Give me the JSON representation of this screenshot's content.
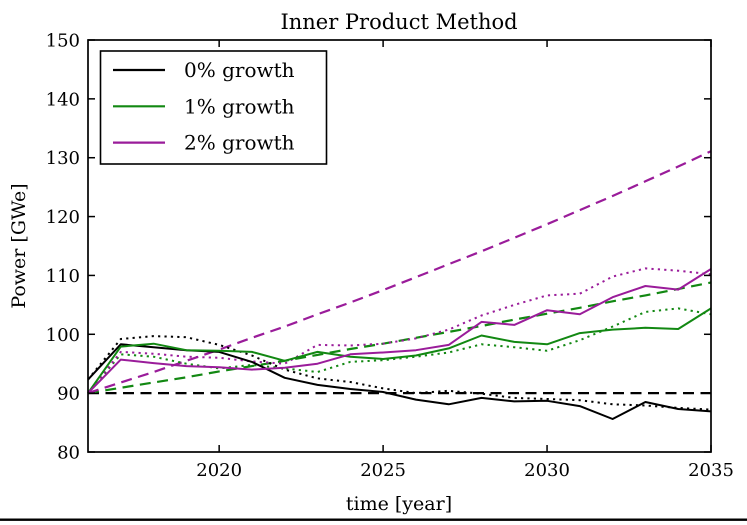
{
  "figure": {
    "title": "Inner Product Method",
    "xlabel": "time [year]",
    "ylabel": "Power [GWe]"
  },
  "chart_data": {
    "type": "line",
    "title": "Inner Product Method",
    "xlabel": "time [year]",
    "ylabel": "Power [GWe]",
    "xlim": [
      2016,
      2035
    ],
    "ylim": [
      80,
      150
    ],
    "grid": false,
    "xticks": [
      2020,
      2025,
      2030,
      2035
    ],
    "xtick_labels": [
      "2020",
      "2025",
      "2030",
      "2035"
    ],
    "yticks": [
      80,
      90,
      100,
      110,
      120,
      130,
      140,
      150
    ],
    "ytick_labels": [
      "80",
      "90",
      "100",
      "110",
      "120",
      "130",
      "140",
      "150"
    ],
    "colors": {
      "black": "#000000",
      "green": "#128812",
      "magenta": "#9a1c9a"
    },
    "legend": {
      "position": "upper-left",
      "entries": [
        {
          "label": "0% growth",
          "color": "#000000"
        },
        {
          "label": "1% growth",
          "color": "#128812"
        },
        {
          "label": "2% growth",
          "color": "#9a1c9a"
        }
      ]
    },
    "x": [
      2016,
      2017,
      2018,
      2019,
      2020,
      2021,
      2022,
      2023,
      2024,
      2025,
      2026,
      2027,
      2028,
      2029,
      2030,
      2031,
      2032,
      2033,
      2034,
      2035
    ],
    "series": [
      {
        "name": "0% growth demand (dashed)",
        "color": "#000000",
        "style": "dashed",
        "values": [
          90,
          90,
          90,
          90,
          90,
          90,
          90,
          90,
          90,
          90,
          90,
          90,
          90,
          90,
          90,
          90,
          90,
          90,
          90,
          90
        ]
      },
      {
        "name": "1% growth demand (dashed)",
        "color": "#128812",
        "style": "dashed",
        "values": [
          90.0,
          90.9,
          91.8,
          92.7,
          93.7,
          94.6,
          95.5,
          96.5,
          97.5,
          98.4,
          99.4,
          100.4,
          101.4,
          102.5,
          103.5,
          104.5,
          105.6,
          106.6,
          107.7,
          108.8
        ]
      },
      {
        "name": "2% growth demand (dashed)",
        "color": "#9a1c9a",
        "style": "dashed",
        "values": [
          90.0,
          91.8,
          93.6,
          95.5,
          97.4,
          99.4,
          101.3,
          103.4,
          105.4,
          107.5,
          109.7,
          111.9,
          114.1,
          116.4,
          118.7,
          121.1,
          123.5,
          126.0,
          128.5,
          131.1
        ]
      },
      {
        "name": "0% growth (dotted)",
        "color": "#000000",
        "style": "dotted",
        "values": [
          92.3,
          99.2,
          99.7,
          99.5,
          98.2,
          96.4,
          94.0,
          92.5,
          91.9,
          90.8,
          90.0,
          90.4,
          89.9,
          89.2,
          89.0,
          88.8,
          88.1,
          87.9,
          87.5,
          87.2
        ]
      },
      {
        "name": "1% growth (dotted)",
        "color": "#128812",
        "style": "dotted",
        "values": [
          90.0,
          96.6,
          96.2,
          95.0,
          94.2,
          94.8,
          94.2,
          93.6,
          95.3,
          95.6,
          96.2,
          96.9,
          98.3,
          97.8,
          97.2,
          99.0,
          101.3,
          103.8,
          104.4,
          103.4
        ]
      },
      {
        "name": "2% growth (dotted)",
        "color": "#9a1c9a",
        "style": "dotted",
        "values": [
          90.0,
          97.0,
          96.7,
          96.2,
          96.0,
          95.4,
          95.0,
          98.2,
          98.1,
          98.4,
          99.3,
          100.8,
          103.2,
          105.0,
          106.6,
          106.9,
          109.8,
          111.2,
          110.8,
          110.2
        ]
      },
      {
        "name": "0% growth (solid)",
        "color": "#000000",
        "style": "solid",
        "values": [
          92.3,
          98.3,
          97.8,
          97.3,
          97.0,
          95.3,
          92.6,
          91.4,
          90.7,
          90.2,
          88.9,
          88.1,
          89.2,
          88.6,
          88.7,
          87.8,
          85.6,
          88.5,
          87.3,
          86.9
        ]
      },
      {
        "name": "1% growth (solid)",
        "color": "#128812",
        "style": "solid",
        "values": [
          90.0,
          97.9,
          98.4,
          97.3,
          97.2,
          97.0,
          95.5,
          97.0,
          96.2,
          95.8,
          96.4,
          97.6,
          99.8,
          98.7,
          98.3,
          100.2,
          100.8,
          101.1,
          100.9,
          104.4
        ]
      },
      {
        "name": "2% growth (solid)",
        "color": "#9a1c9a",
        "style": "solid",
        "values": [
          90.0,
          95.7,
          95.1,
          94.6,
          94.4,
          94.0,
          94.3,
          95.0,
          96.6,
          96.9,
          97.3,
          98.2,
          102.1,
          101.6,
          104.1,
          103.4,
          106.3,
          108.2,
          107.6,
          111.1
        ]
      }
    ]
  }
}
